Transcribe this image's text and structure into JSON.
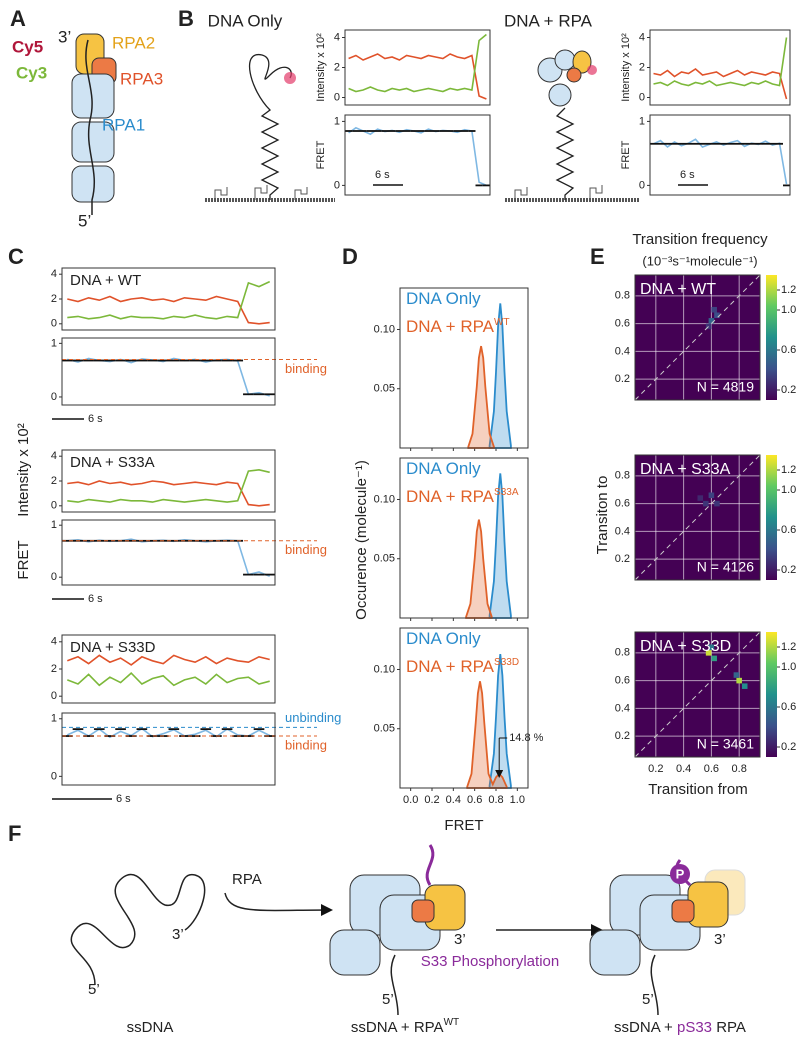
{
  "panel_labels": [
    "A",
    "B",
    "C",
    "D",
    "E",
    "F"
  ],
  "panel_a": {
    "labels": [
      "Cy5",
      "3’",
      "RPA2",
      "Cy3",
      "RPA3",
      "RPA1",
      "5’"
    ]
  },
  "panel_b": {
    "titles": [
      "DNA Only",
      "DNA + RPA"
    ]
  },
  "panel_c": {
    "ylabel_fret": "FRET",
    "ylabel_intensity": "Intensity x 10²"
  },
  "panel_d": {
    "xlabel": "FRET",
    "ylabel": "Occurence (molecule⁻¹)"
  },
  "panel_e": {
    "title": "Transition frequency",
    "subtitle": "(10⁻³s⁻¹molecule⁻¹)",
    "xlabel": "Transition from",
    "ylabel": "Transiton to"
  },
  "panel_f": {
    "ssdna": "ssDNA",
    "rpa": "RPA",
    "three_prime": "3’",
    "five_prime": "5’",
    "middle_label": "ssDNA + RPA",
    "middle_sup": "WT",
    "phospho": "S33 Phosphorylation",
    "right_label_start": "ssDNA + ",
    "right_label_ps33": "pS33",
    "right_label_end": " RPA",
    "p": "P"
  },
  "chart_data": [
    {
      "type": "line",
      "ylabel": "Intensity x 10²",
      "ylim": [
        -0.5,
        4.5
      ],
      "yticks": [
        0,
        2,
        4
      ],
      "series": [
        {
          "color": "#e0522a",
          "values": [
            2.6,
            2.8,
            2.5,
            2.7,
            2.9,
            2.6,
            2.7,
            2.5,
            2.8,
            2.7,
            2.6,
            2.8,
            2.7,
            2.6,
            2.9,
            2.7,
            2.6,
            2.8,
            0.1,
            -0.1
          ]
        },
        {
          "color": "#7cb83a",
          "values": [
            0.6,
            0.4,
            0.5,
            0.7,
            0.5,
            0.4,
            0.6,
            0.5,
            0.6,
            0.4,
            0.5,
            0.6,
            0.5,
            0.4,
            0.6,
            0.5,
            0.6,
            0.5,
            3.8,
            4.2
          ]
        }
      ]
    },
    {
      "type": "line",
      "ylabel": "FRET",
      "scale_bar": "6 s",
      "ylim": [
        -0.15,
        1.1
      ],
      "yticks": [
        0,
        1
      ],
      "series": [
        {
          "color": "#7fb8e3",
          "values": [
            0.82,
            0.9,
            0.85,
            0.8,
            0.88,
            0.84,
            0.86,
            0.83,
            0.87,
            0.85,
            0.82,
            0.88,
            0.84,
            0.86,
            0.85,
            0.83,
            0.87,
            0.85,
            0.05,
            0
          ]
        },
        {
          "color": "#111111",
          "step": true,
          "values": [
            0.85,
            0.85,
            0.85,
            0.85,
            0.85,
            0.85,
            0.85,
            0.85,
            0.85,
            0.85,
            0.85,
            0.85,
            0.85,
            0.85,
            0.85,
            0.85,
            0.85,
            0.85,
            0,
            0
          ]
        }
      ]
    },
    {
      "type": "line",
      "ylabel": "Intensity x 10²",
      "ylim": [
        -0.5,
        4.5
      ],
      "yticks": [
        0,
        2,
        4
      ],
      "series": [
        {
          "color": "#e0522a",
          "values": [
            1.6,
            1.5,
            1.8,
            1.4,
            1.7,
            1.6,
            1.9,
            1.5,
            1.6,
            1.7,
            1.4,
            1.6,
            1.8,
            1.5,
            1.7,
            1.6,
            1.5,
            1.7,
            1.6,
            -0.1
          ]
        },
        {
          "color": "#7cb83a",
          "values": [
            0.9,
            1.0,
            0.8,
            1.1,
            0.9,
            0.8,
            1.0,
            0.9,
            1.1,
            0.8,
            0.9,
            1.0,
            0.9,
            0.8,
            1.0,
            0.9,
            1.1,
            0.9,
            0.8,
            4.0
          ]
        }
      ]
    },
    {
      "type": "line",
      "ylabel": "FRET",
      "scale_bar": "6 s",
      "ylim": [
        -0.15,
        1.1
      ],
      "yticks": [
        0,
        1
      ],
      "series": [
        {
          "color": "#7fb8e3",
          "values": [
            0.65,
            0.7,
            0.6,
            0.68,
            0.62,
            0.66,
            0.72,
            0.6,
            0.64,
            0.68,
            0.63,
            0.67,
            0.7,
            0.61,
            0.66,
            0.64,
            0.69,
            0.63,
            0.66,
            0.02
          ]
        },
        {
          "color": "#111111",
          "step": true,
          "values": [
            0.65,
            0.65,
            0.65,
            0.65,
            0.65,
            0.65,
            0.65,
            0.65,
            0.65,
            0.65,
            0.65,
            0.65,
            0.65,
            0.65,
            0.65,
            0.65,
            0.65,
            0.65,
            0.65,
            0
          ]
        }
      ]
    },
    {
      "type": "line",
      "title": "DNA + WT",
      "ylim": [
        -0.5,
        4.5
      ],
      "yticks": [
        0,
        2,
        4
      ],
      "series": [
        {
          "color": "#e0522a",
          "values": [
            2.0,
            1.8,
            2.1,
            1.9,
            2.2,
            1.8,
            2.0,
            2.1,
            1.9,
            2.0,
            1.8,
            2.1,
            2.0,
            1.9,
            2.2,
            2.0,
            1.8,
            0.1,
            0,
            0.1
          ]
        },
        {
          "color": "#7cb83a",
          "values": [
            0.5,
            0.6,
            0.4,
            0.5,
            0.7,
            0.4,
            0.6,
            0.5,
            0.5,
            0.4,
            0.6,
            0.5,
            0.7,
            0.5,
            0.4,
            0.6,
            0.5,
            3.3,
            3.0,
            3.4
          ]
        }
      ]
    },
    {
      "type": "line",
      "scale_bar": "6 s",
      "ylim": [
        -0.15,
        1.1
      ],
      "yticks": [
        0,
        1
      ],
      "reference_lines": [
        {
          "value": 0.7,
          "label": "binding",
          "color": "#e0622a"
        }
      ],
      "series": [
        {
          "color": "#7fb8e3",
          "values": [
            0.7,
            0.65,
            0.72,
            0.68,
            0.66,
            0.7,
            0.64,
            0.71,
            0.69,
            0.66,
            0.72,
            0.68,
            0.7,
            0.65,
            0.69,
            0.7,
            0.67,
            0.05,
            0.08,
            0.02
          ]
        },
        {
          "color": "#111111",
          "step": true,
          "values": [
            0.68,
            0.68,
            0.68,
            0.68,
            0.68,
            0.68,
            0.68,
            0.68,
            0.68,
            0.68,
            0.68,
            0.68,
            0.68,
            0.68,
            0.68,
            0.68,
            0.68,
            0.05,
            0.05,
            0.05
          ]
        }
      ]
    },
    {
      "type": "line",
      "title": "DNA + S33A",
      "ylim": [
        -0.5,
        4.5
      ],
      "yticks": [
        0,
        2,
        4
      ],
      "series": [
        {
          "color": "#e0522a",
          "values": [
            1.8,
            1.9,
            1.7,
            2.0,
            1.8,
            1.9,
            1.7,
            1.8,
            2.0,
            1.9,
            1.7,
            1.8,
            1.9,
            1.8,
            1.7,
            1.9,
            1.8,
            0.1,
            0,
            0.1
          ]
        },
        {
          "color": "#7cb83a",
          "values": [
            0.4,
            0.3,
            0.5,
            0.4,
            0.3,
            0.5,
            0.4,
            0.4,
            0.3,
            0.5,
            0.4,
            0.3,
            0.4,
            0.5,
            0.4,
            0.3,
            0.4,
            2.8,
            2.9,
            2.7
          ]
        }
      ]
    },
    {
      "type": "line",
      "scale_bar": "6 s",
      "ylim": [
        -0.15,
        1.1
      ],
      "yticks": [
        0,
        1
      ],
      "reference_lines": [
        {
          "value": 0.7,
          "label": "binding",
          "color": "#e0622a"
        }
      ],
      "series": [
        {
          "color": "#7fb8e3",
          "values": [
            0.7,
            0.72,
            0.68,
            0.71,
            0.69,
            0.7,
            0.73,
            0.68,
            0.7,
            0.71,
            0.69,
            0.72,
            0.7,
            0.68,
            0.7,
            0.71,
            0.7,
            0.05,
            0.1,
            0.02
          ]
        },
        {
          "color": "#111111",
          "step": true,
          "values": [
            0.7,
            0.7,
            0.7,
            0.7,
            0.7,
            0.7,
            0.7,
            0.7,
            0.7,
            0.7,
            0.7,
            0.7,
            0.7,
            0.7,
            0.7,
            0.7,
            0.7,
            0.05,
            0.05,
            0.05
          ]
        }
      ]
    },
    {
      "type": "line",
      "title": "DNA + S33D",
      "ylim": [
        -0.5,
        4.5
      ],
      "yticks": [
        0,
        2,
        4
      ],
      "series": [
        {
          "color": "#e0522a",
          "values": [
            2.6,
            2.9,
            2.4,
            3.0,
            2.5,
            2.8,
            2.3,
            2.9,
            2.6,
            2.4,
            3.0,
            2.7,
            2.5,
            2.9,
            2.4,
            2.8,
            2.6,
            2.5,
            2.9,
            2.7
          ]
        },
        {
          "color": "#7cb83a",
          "values": [
            1.2,
            0.9,
            1.6,
            0.8,
            1.4,
            1.0,
            1.7,
            0.9,
            1.3,
            1.5,
            0.8,
            1.2,
            1.4,
            0.9,
            1.6,
            1.0,
            1.3,
            1.4,
            0.9,
            1.1
          ]
        }
      ]
    },
    {
      "type": "line",
      "scale_bar": "6 s",
      "ylim": [
        -0.15,
        1.1
      ],
      "yticks": [
        0,
        1
      ],
      "reference_lines": [
        {
          "value": 0.85,
          "label": "unbinding",
          "color": "#2b8ccc"
        },
        {
          "value": 0.7,
          "label": "binding",
          "color": "#e0622a"
        }
      ],
      "series": [
        {
          "color": "#7fb8e3",
          "values": [
            0.72,
            0.8,
            0.7,
            0.82,
            0.68,
            0.78,
            0.71,
            0.83,
            0.69,
            0.74,
            0.81,
            0.7,
            0.73,
            0.8,
            0.69,
            0.82,
            0.72,
            0.7,
            0.8,
            0.71
          ]
        },
        {
          "color": "#111111",
          "step": true,
          "values": [
            0.7,
            0.82,
            0.7,
            0.82,
            0.7,
            0.82,
            0.7,
            0.82,
            0.7,
            0.7,
            0.82,
            0.7,
            0.7,
            0.82,
            0.7,
            0.82,
            0.7,
            0.7,
            0.82,
            0.7
          ]
        }
      ]
    },
    {
      "type": "area",
      "xlim": [
        -0.1,
        1.1
      ],
      "xticks": [
        {
          "value": 0,
          "label": "0.0"
        },
        0.2,
        0.4,
        0.6,
        0.8,
        {
          "value": 1,
          "label": "1.0"
        }
      ],
      "show_xticklabels": false,
      "ylim": [
        0,
        0.135
      ],
      "yticks": [
        0.05,
        {
          "value": 0.1,
          "label": "0.10"
        }
      ],
      "series": [
        {
          "name": "DNA Only",
          "color": "#2b8ccc",
          "x": [
            0.74,
            0.78,
            0.8,
            0.82,
            0.84,
            0.86,
            0.88,
            0.9,
            0.94
          ],
          "values": [
            0.002,
            0.031,
            0.064,
            0.103,
            0.122,
            0.103,
            0.064,
            0.031,
            0.002
          ]
        },
        {
          "name": "DNA + RPA",
          "name_sup": "WT",
          "color": "#e0622a",
          "x": [
            0.54,
            0.58,
            0.62,
            0.64,
            0.66,
            0.68,
            0.7,
            0.74,
            0.78
          ],
          "values": [
            0.001,
            0.012,
            0.052,
            0.076,
            0.086,
            0.076,
            0.052,
            0.012,
            0.001
          ]
        }
      ]
    },
    {
      "type": "area",
      "xlim": [
        -0.1,
        1.1
      ],
      "xticks": [
        {
          "value": 0,
          "label": "0.0"
        },
        0.2,
        0.4,
        0.6,
        0.8,
        {
          "value": 1,
          "label": "1.0"
        }
      ],
      "show_xticklabels": false,
      "ylim": [
        0,
        0.135
      ],
      "yticks": [
        0.05,
        {
          "value": 0.1,
          "label": "0.10"
        }
      ],
      "series": [
        {
          "name": "DNA Only",
          "color": "#2b8ccc",
          "x": [
            0.74,
            0.78,
            0.8,
            0.82,
            0.84,
            0.86,
            0.88,
            0.9,
            0.94
          ],
          "values": [
            0.002,
            0.031,
            0.064,
            0.103,
            0.122,
            0.103,
            0.064,
            0.031,
            0.002
          ]
        },
        {
          "name": "DNA + RPA",
          "name_sup": "S33A",
          "color": "#e0622a",
          "x": [
            0.52,
            0.56,
            0.6,
            0.62,
            0.64,
            0.66,
            0.68,
            0.72,
            0.76
          ],
          "values": [
            0.001,
            0.012,
            0.05,
            0.073,
            0.083,
            0.073,
            0.05,
            0.012,
            0.001
          ]
        }
      ]
    },
    {
      "type": "area",
      "xlim": [
        -0.1,
        1.1
      ],
      "xticks": [
        {
          "value": 0,
          "label": "0.0"
        },
        0.2,
        0.4,
        0.6,
        0.8,
        {
          "value": 1,
          "label": "1.0"
        }
      ],
      "show_xticklabels": true,
      "ylim": [
        0,
        0.135
      ],
      "yticks": [
        0.05,
        {
          "value": 0.1,
          "label": "0.10"
        }
      ],
      "annotation": "14.8 %",
      "annotation_x": 0.83,
      "series": [
        {
          "name": "DNA Only",
          "color": "#2b8ccc",
          "x": [
            0.74,
            0.78,
            0.8,
            0.82,
            0.84,
            0.86,
            0.88,
            0.9,
            0.94
          ],
          "values": [
            0.002,
            0.029,
            0.06,
            0.095,
            0.113,
            0.095,
            0.06,
            0.029,
            0.002
          ]
        },
        {
          "name": "DNA + RPA",
          "name_sup": "S33D",
          "color": "#e0622a",
          "x": [
            0.53,
            0.57,
            0.61,
            0.63,
            0.65,
            0.67,
            0.69,
            0.73,
            0.77,
            0.8,
            0.83,
            0.86,
            0.9
          ],
          "values": [
            0.001,
            0.012,
            0.055,
            0.08,
            0.09,
            0.08,
            0.055,
            0.012,
            0.003,
            0.009,
            0.012,
            0.009,
            0.001
          ]
        }
      ]
    },
    {
      "type": "heatmap",
      "label": "DNA + WT",
      "n_label": "N = 4819",
      "xlim": [
        0.05,
        0.95
      ],
      "ylim": [
        0.05,
        0.95
      ],
      "xticks": [
        0.2,
        0.4,
        0.6,
        0.8
      ],
      "yticks": [
        0.2,
        0.4,
        0.6,
        0.8
      ],
      "show_xticklabels": false,
      "clim": [
        0.1,
        1.35
      ],
      "colorbar_ticks": [
        0.2,
        0.6,
        {
          "value": 1,
          "label": "1.0"
        },
        1.2
      ],
      "x": [
        0.6,
        0.64,
        0.62,
        0.58
      ],
      "y": [
        0.62,
        0.66,
        0.7,
        0.58
      ],
      "values": [
        0.5,
        0.4,
        0.35,
        0.3
      ]
    },
    {
      "type": "heatmap",
      "label": "DNA + S33A",
      "n_label": "N = 4126",
      "xlim": [
        0.05,
        0.95
      ],
      "ylim": [
        0.05,
        0.95
      ],
      "xticks": [
        0.2,
        0.4,
        0.6,
        0.8
      ],
      "yticks": [
        0.2,
        0.4,
        0.6,
        0.8
      ],
      "show_xticklabels": false,
      "clim": [
        0.1,
        1.35
      ],
      "colorbar_ticks": [
        0.2,
        0.6,
        {
          "value": 1,
          "label": "1.0"
        },
        1.2
      ],
      "x": [
        0.6,
        0.56,
        0.64,
        0.52
      ],
      "y": [
        0.66,
        0.6,
        0.6,
        0.64
      ],
      "values": [
        0.35,
        0.3,
        0.3,
        0.25
      ]
    },
    {
      "type": "heatmap",
      "label": "DNA + S33D",
      "n_label": "N = 3461",
      "xlim": [
        0.05,
        0.95
      ],
      "ylim": [
        0.05,
        0.95
      ],
      "xticks": [
        0.2,
        0.4,
        0.6,
        0.8
      ],
      "yticks": [
        0.2,
        0.4,
        0.6,
        0.8
      ],
      "show_xticklabels": true,
      "clim": [
        0.1,
        1.35
      ],
      "colorbar_ticks": [
        0.2,
        0.6,
        {
          "value": 1,
          "label": "1.0"
        },
        1.2
      ],
      "x": [
        0.58,
        0.62,
        0.8,
        0.84,
        0.6,
        0.78
      ],
      "y": [
        0.8,
        0.76,
        0.6,
        0.56,
        0.84,
        0.64
      ],
      "values": [
        1.25,
        0.8,
        1.2,
        0.7,
        0.6,
        0.5
      ]
    }
  ]
}
